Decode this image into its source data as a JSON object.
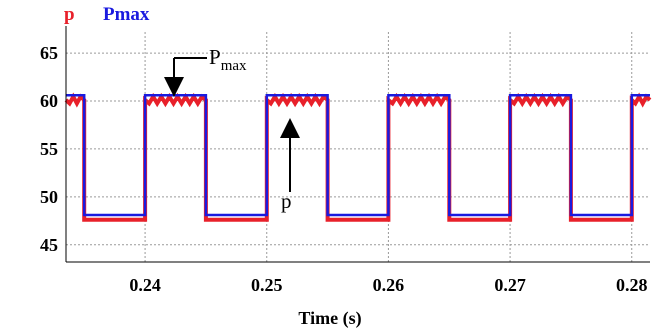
{
  "chart_data": {
    "type": "line",
    "title": "",
    "xlabel": "Time (s)",
    "ylabel": "",
    "xlim": [
      0.2335,
      0.2815
    ],
    "ylim": [
      43.2,
      67.2
    ],
    "xticks": [
      {
        "value": 0.24,
        "label": "0.24"
      },
      {
        "value": 0.25,
        "label": "0.25"
      },
      {
        "value": 0.26,
        "label": "0.26"
      },
      {
        "value": 0.27,
        "label": "0.27"
      },
      {
        "value": 0.28,
        "label": "0.28"
      }
    ],
    "yticks": [
      {
        "value": 45,
        "label": "45"
      },
      {
        "value": 50,
        "label": "50"
      },
      {
        "value": 55,
        "label": "55"
      },
      {
        "value": 60,
        "label": "60"
      },
      {
        "value": 65,
        "label": "65"
      }
    ],
    "grid": true,
    "legend_position": "top-left",
    "series": [
      {
        "name": "p",
        "color": "#e8202a",
        "high": 60.1,
        "low": 47.6,
        "ripple": 0.35,
        "x": [
          0.2335,
          0.235,
          0.235,
          0.24,
          0.24,
          0.245,
          0.245,
          0.25,
          0.25,
          0.255,
          0.255,
          0.26,
          0.26,
          0.265,
          0.265,
          0.27,
          0.27,
          0.275,
          0.275,
          0.28,
          0.28,
          0.2815
        ],
        "y": [
          60.1,
          60.1,
          47.6,
          47.6,
          60.1,
          60.1,
          47.6,
          47.6,
          60.1,
          60.1,
          47.6,
          47.6,
          60.1,
          60.1,
          47.6,
          47.6,
          60.1,
          60.1,
          47.6,
          47.6,
          60.1,
          60.1
        ]
      },
      {
        "name": "Pmax",
        "color": "#1a1adf",
        "x": [
          0.2335,
          0.235,
          0.235,
          0.24,
          0.24,
          0.245,
          0.245,
          0.25,
          0.25,
          0.255,
          0.255,
          0.26,
          0.26,
          0.265,
          0.265,
          0.27,
          0.27,
          0.275,
          0.275,
          0.28,
          0.28,
          0.2815
        ],
        "y": [
          60.6,
          60.6,
          48.1,
          48.1,
          60.6,
          60.6,
          48.1,
          48.1,
          60.6,
          60.6,
          48.1,
          48.1,
          60.6,
          60.6,
          48.1,
          48.1,
          60.6,
          60.6,
          48.1,
          48.1,
          60.6,
          60.6
        ]
      }
    ],
    "annotations": [
      {
        "text": "P",
        "subscript": "max",
        "points_to": {
          "x": 0.2425,
          "y": 60.6
        }
      },
      {
        "text": "p",
        "points_to": {
          "x": 0.251,
          "y": 60.1
        }
      }
    ]
  }
}
